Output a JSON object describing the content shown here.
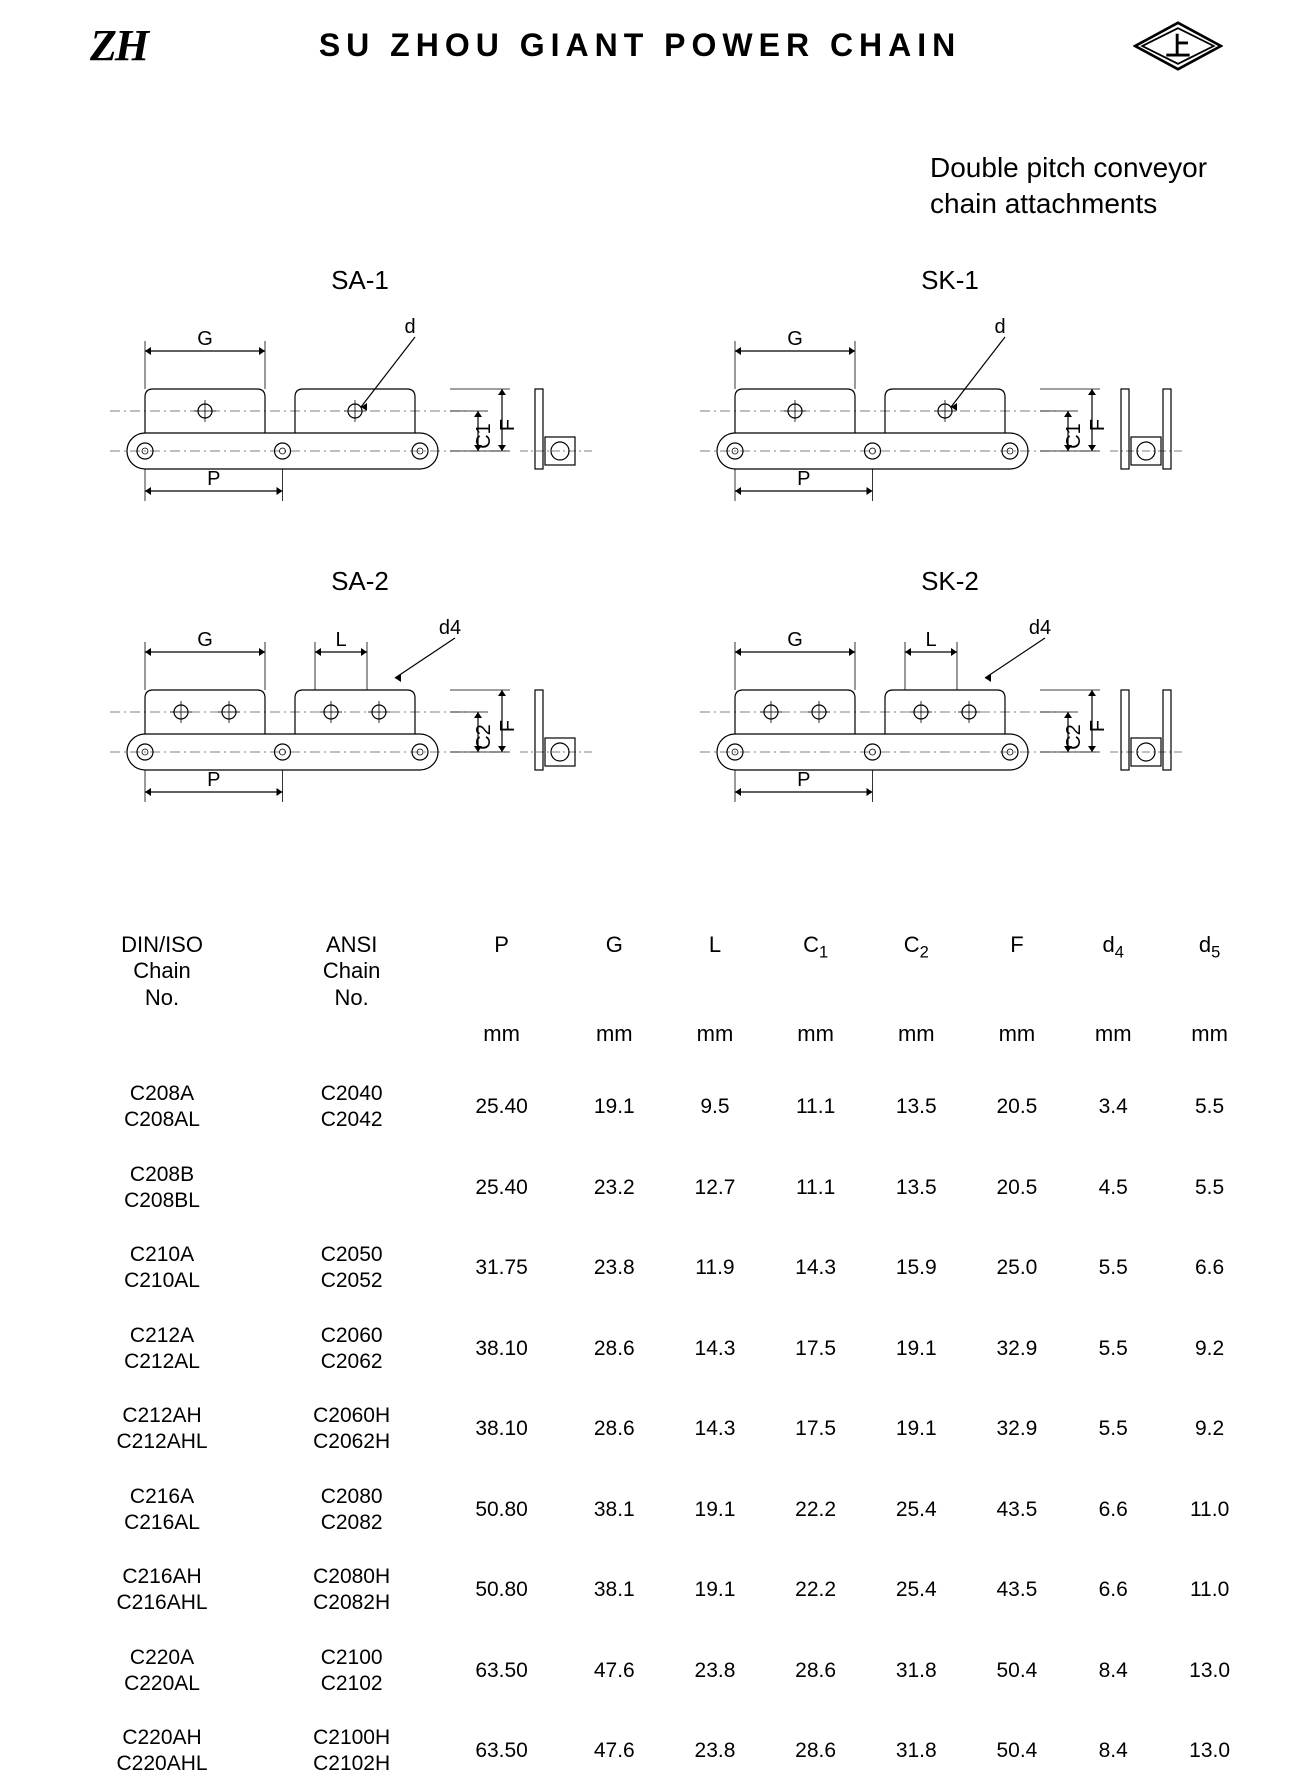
{
  "header": {
    "logo_left_text": "ZH",
    "company_name": "SU ZHOU GIANT POWER CHAIN"
  },
  "subtitle": {
    "line1": "Double pitch conveyor",
    "line2": "chain attachments"
  },
  "diagrams": {
    "sa1": {
      "title": "SA-1",
      "dims": [
        "G",
        "d",
        "P",
        "F",
        "C1"
      ]
    },
    "sk1": {
      "title": "SK-1",
      "dims": [
        "G",
        "d",
        "P",
        "F",
        "C1"
      ]
    },
    "sa2": {
      "title": "SA-2",
      "dims": [
        "G",
        "L",
        "d4",
        "P",
        "F",
        "C2"
      ]
    },
    "sk2": {
      "title": "SK-2",
      "dims": [
        "G",
        "L",
        "d4",
        "P",
        "F",
        "C2"
      ]
    }
  },
  "table": {
    "columns": [
      {
        "h1": "DIN/ISO",
        "h2": "Chain",
        "h3": "No.",
        "unit": ""
      },
      {
        "h1": "ANSI",
        "h2": "Chain",
        "h3": "No.",
        "unit": ""
      },
      {
        "h1": "P",
        "unit": "mm"
      },
      {
        "h1": "G",
        "unit": "mm"
      },
      {
        "h1": "L",
        "unit": "mm"
      },
      {
        "h1": "C",
        "sub": "1",
        "unit": "mm"
      },
      {
        "h1": "C",
        "sub": "2",
        "unit": "mm"
      },
      {
        "h1": "F",
        "unit": "mm"
      },
      {
        "h1": "d",
        "sub": "4",
        "unit": "mm"
      },
      {
        "h1": "d",
        "sub": "5",
        "unit": "mm"
      }
    ],
    "rows": [
      {
        "din": [
          "C208A",
          "C208AL"
        ],
        "ansi": [
          "C2040",
          "C2042"
        ],
        "vals": [
          "25.40",
          "19.1",
          "9.5",
          "11.1",
          "13.5",
          "20.5",
          "3.4",
          "5.5"
        ]
      },
      {
        "din": [
          "C208B",
          "C208BL"
        ],
        "ansi": [
          ""
        ],
        "vals": [
          "25.40",
          "23.2",
          "12.7",
          "11.1",
          "13.5",
          "20.5",
          "4.5",
          "5.5"
        ]
      },
      {
        "din": [
          "C210A",
          "C210AL"
        ],
        "ansi": [
          "C2050",
          "C2052"
        ],
        "vals": [
          "31.75",
          "23.8",
          "11.9",
          "14.3",
          "15.9",
          "25.0",
          "5.5",
          "6.6"
        ]
      },
      {
        "din": [
          "C212A",
          "C212AL"
        ],
        "ansi": [
          "C2060",
          "C2062"
        ],
        "vals": [
          "38.10",
          "28.6",
          "14.3",
          "17.5",
          "19.1",
          "32.9",
          "5.5",
          "9.2"
        ]
      },
      {
        "din": [
          "C212AH",
          "C212AHL"
        ],
        "ansi": [
          "C2060H",
          "C2062H"
        ],
        "vals": [
          "38.10",
          "28.6",
          "14.3",
          "17.5",
          "19.1",
          "32.9",
          "5.5",
          "9.2"
        ]
      },
      {
        "din": [
          "C216A",
          "C216AL"
        ],
        "ansi": [
          "C2080",
          "C2082"
        ],
        "vals": [
          "50.80",
          "38.1",
          "19.1",
          "22.2",
          "25.4",
          "43.5",
          "6.6",
          "11.0"
        ]
      },
      {
        "din": [
          "C216AH",
          "C216AHL"
        ],
        "ansi": [
          "C2080H",
          "C2082H"
        ],
        "vals": [
          "50.80",
          "38.1",
          "19.1",
          "22.2",
          "25.4",
          "43.5",
          "6.6",
          "11.0"
        ]
      },
      {
        "din": [
          "C220A",
          "C220AL"
        ],
        "ansi": [
          "C2100",
          "C2102"
        ],
        "vals": [
          "63.50",
          "47.6",
          "23.8",
          "28.6",
          "31.8",
          "50.4",
          "8.4",
          "13.0"
        ]
      },
      {
        "din": [
          "C220AH",
          "C220AHL"
        ],
        "ansi": [
          "C2100H",
          "C2102H"
        ],
        "vals": [
          "63.50",
          "47.6",
          "23.8",
          "28.6",
          "31.8",
          "50.4",
          "8.4",
          "13.0"
        ]
      }
    ]
  },
  "style": {
    "text_color": "#000000",
    "bg_color": "#ffffff",
    "line_color": "#000000",
    "stroke_width": 1.2
  }
}
